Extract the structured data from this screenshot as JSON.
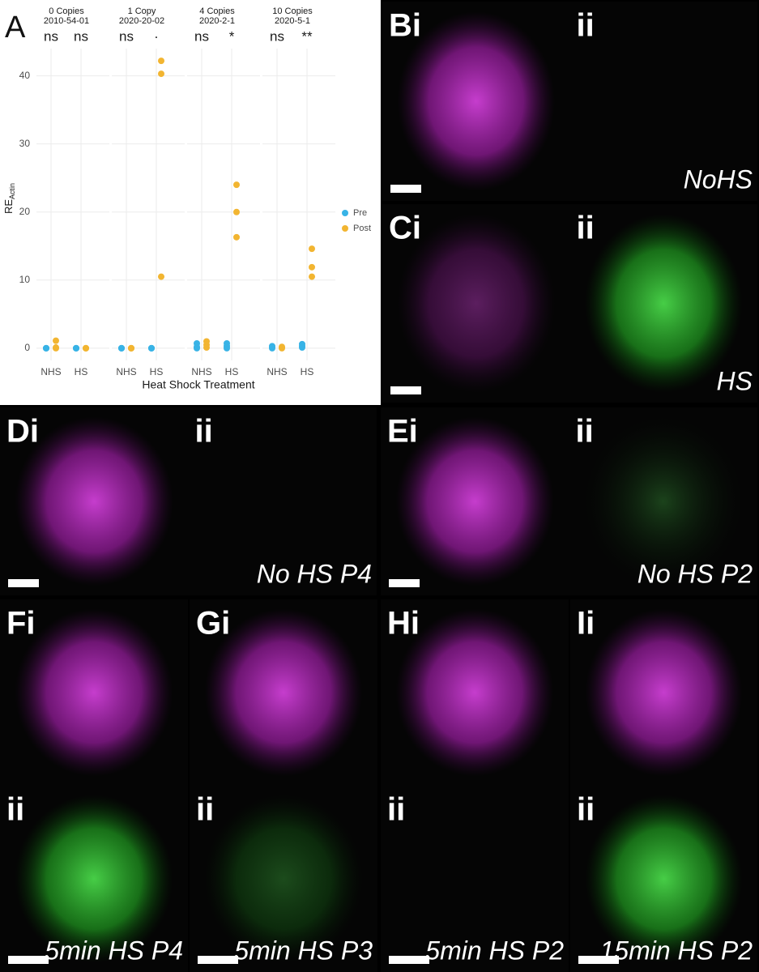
{
  "chart_data": {
    "type": "scatter",
    "panel_label": "A",
    "ylabel": "RE",
    "ylabel_sub": "Actin",
    "xlabel": "Heat Shock Treatment",
    "categories": [
      "NHS",
      "HS"
    ],
    "ylim": [
      -1.8,
      44
    ],
    "yticks": [
      0,
      10,
      20,
      30,
      40
    ],
    "grid": true,
    "legend": "right",
    "series": [
      {
        "name": "Pre",
        "color": "#38b3e6",
        "values": [
          [
            [
              0,
              0,
              0
            ],
            [
              0,
              0,
              0
            ]
          ],
          [
            [
              0,
              0,
              0
            ],
            [
              0,
              0,
              0
            ]
          ],
          [
            [
              0.7,
              0.2,
              0
            ],
            [
              0.7,
              0.3,
              0
            ]
          ],
          [
            [
              0.3,
              0.1,
              0
            ],
            [
              0.6,
              0.3,
              0.1
            ]
          ]
        ]
      },
      {
        "name": "Post",
        "color": "#f2b531",
        "values": [
          [
            [
              1.1,
              0.1,
              0
            ],
            [
              0,
              0,
              0
            ]
          ],
          [
            [
              0,
              0,
              0
            ],
            [
              42.2,
              40.3,
              10.5
            ]
          ],
          [
            [
              1.0,
              0.5,
              0.1
            ],
            [
              24.0,
              20.0,
              16.3
            ]
          ],
          [
            [
              0.2,
              0.1,
              0
            ],
            [
              14.6,
              11.9,
              10.5
            ]
          ]
        ]
      }
    ],
    "facets": [
      {
        "title": "0 Copies",
        "subtitle": "2010-54-01",
        "significance": [
          "ns",
          "ns"
        ]
      },
      {
        "title": "1 Copy",
        "subtitle": "2020-20-02",
        "significance": [
          "ns",
          "·"
        ]
      },
      {
        "title": "4 Copies",
        "subtitle": "2020-2-1",
        "significance": [
          "ns",
          "*"
        ]
      },
      {
        "title": "10 Copies",
        "subtitle": "2020-5-1",
        "significance": [
          "ns",
          "**"
        ]
      }
    ]
  },
  "image_panels": [
    {
      "label": "Bi",
      "sub_label": "ii",
      "caption": "NoHS"
    },
    {
      "label": "Ci",
      "sub_label": "ii",
      "caption": "HS"
    },
    {
      "label": "Di",
      "sub_label": "ii",
      "caption": "No HS P4"
    },
    {
      "label": "Ei",
      "sub_label": "ii",
      "caption": "No HS P2"
    },
    {
      "label": "Fi",
      "sub_label": "ii",
      "caption": "5min HS  P4"
    },
    {
      "label": "Gi",
      "sub_label": "ii",
      "caption": "5min HS  P3"
    },
    {
      "label": "Hi",
      "sub_label": "ii",
      "caption": "5min HS  P2"
    },
    {
      "label": "Ii",
      "sub_label": "ii",
      "caption": "15min HS  P2"
    }
  ]
}
